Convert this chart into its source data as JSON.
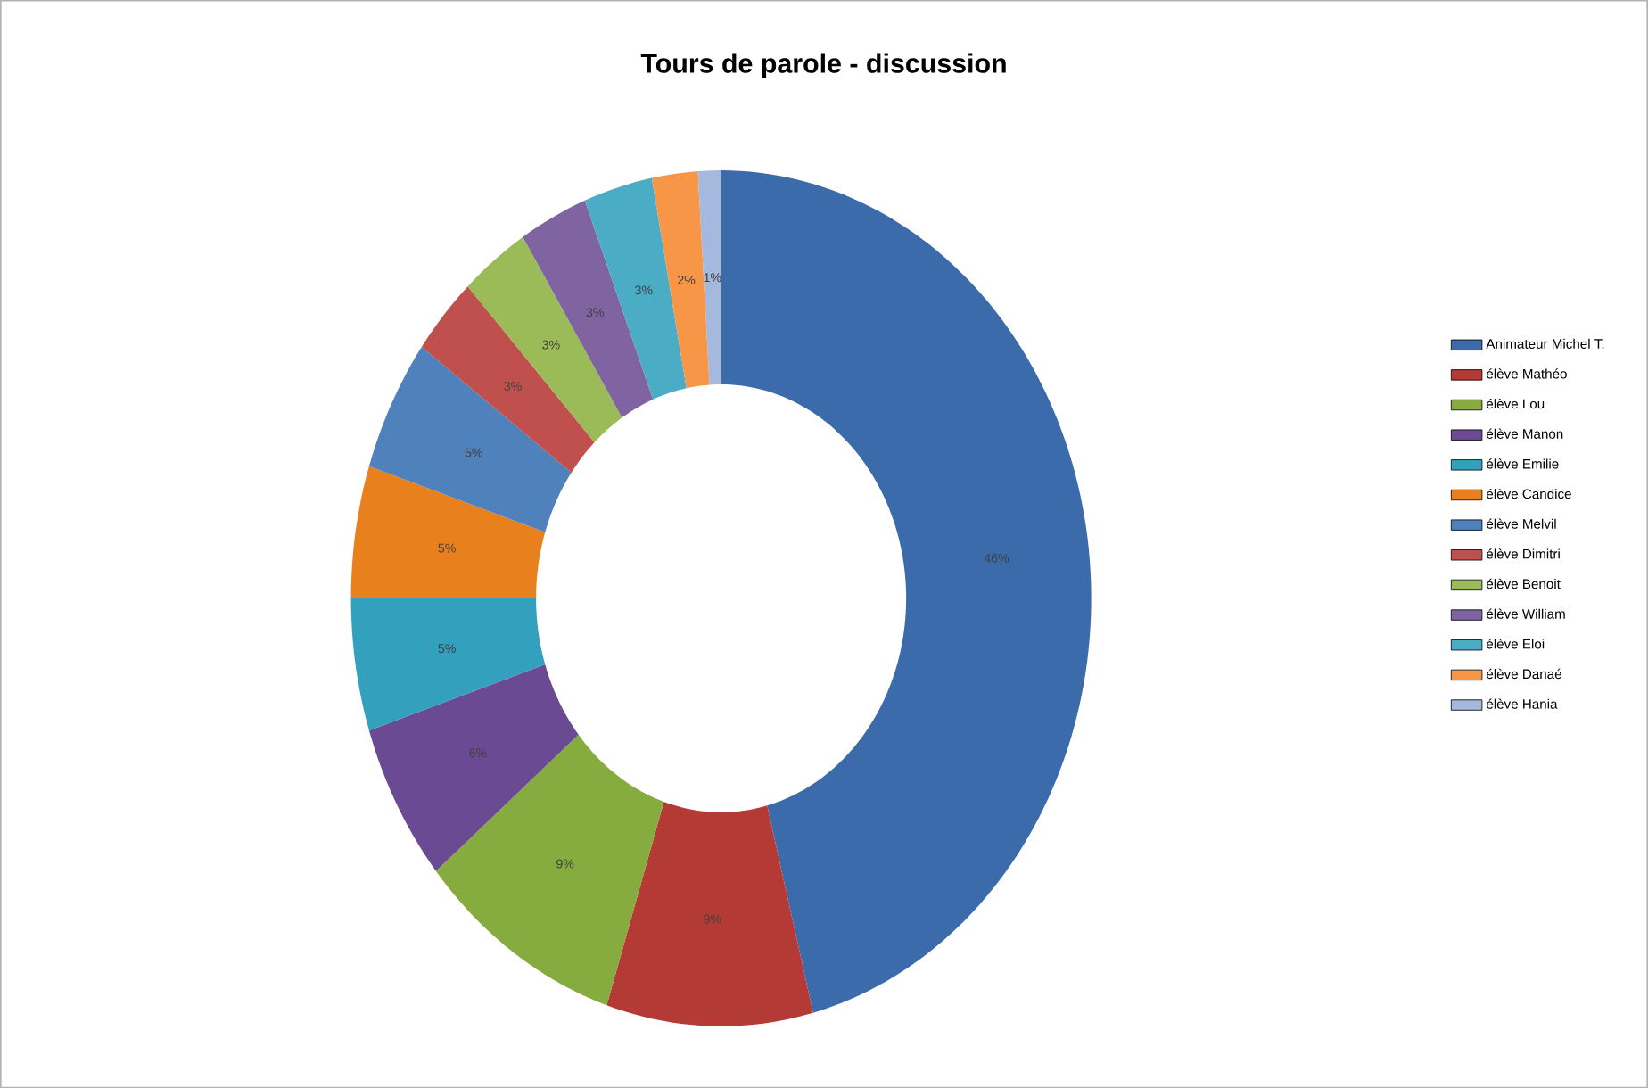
{
  "chart_data": {
    "type": "donut",
    "title": "Tours de parole - discussion",
    "categories": [
      "Animateur Michel T.",
      "élève Mathéo",
      "élève Lou",
      "élève Manon",
      "élève Emilie",
      "élève Candice",
      "élève Melvil",
      "élève Dimitri",
      "élève Benoit",
      "élève William",
      "élève Eloi",
      "élève Danaé",
      "élève Hania"
    ],
    "values": [
      46,
      9,
      9,
      6,
      5,
      5,
      5,
      3,
      3,
      3,
      3,
      2,
      1
    ],
    "value_labels": [
      "46%",
      "9%",
      "9%",
      "6%",
      "5%",
      "5%",
      "5%",
      "3%",
      "3%",
      "3%",
      "3%",
      "2%",
      "1%"
    ],
    "colors": [
      "#3c6bab",
      "#b43a36",
      "#86ab3f",
      "#6a4a92",
      "#33a0bd",
      "#e8811d",
      "#4f81bd",
      "#c0504d",
      "#9bbb59",
      "#8064a2",
      "#4bacc6",
      "#f79646",
      "#a5b8de"
    ],
    "legend": "right"
  }
}
